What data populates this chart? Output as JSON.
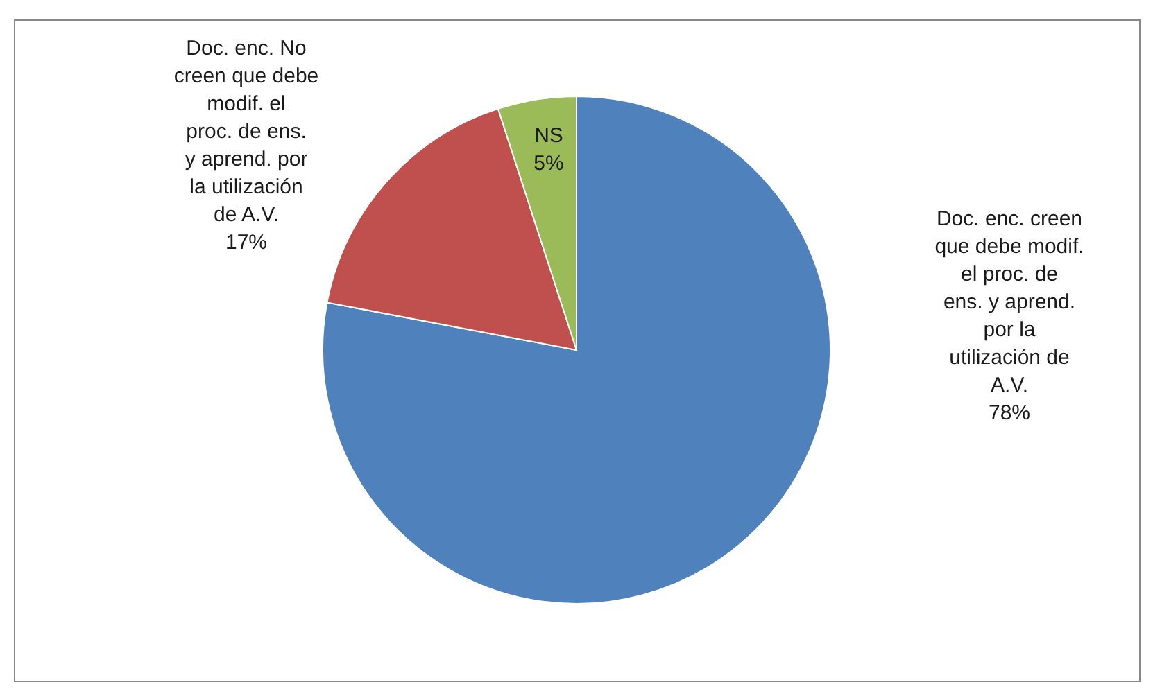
{
  "chart_data": {
    "type": "pie",
    "categories": [
      "Doc. enc. creen que debe modif. el proc. de ens. y aprend. por la utilización de A.V.",
      "Doc. enc. No creen que debe modif. el proc. de ens. y aprend. por la utilización de A.V.",
      "NS"
    ],
    "values": [
      78,
      17,
      5
    ],
    "colors": [
      "#4f81bd",
      "#c0504d",
      "#9bbb59"
    ],
    "value_labels": [
      "78%",
      "17%",
      "5%"
    ],
    "legend": false
  }
}
